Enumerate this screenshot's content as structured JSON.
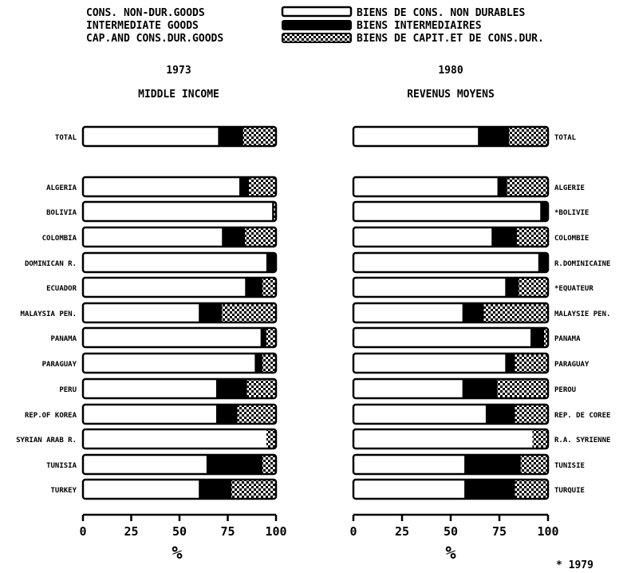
{
  "legend": [
    {
      "en": "CONS. NON-DUR.GOODS",
      "fr": "BIENS DE CONS. NON DURABLES",
      "pattern": "white"
    },
    {
      "en": "INTERMEDIATE GOODS",
      "fr": "BIENS INTERMEDIAIRES",
      "pattern": "black"
    },
    {
      "en": "CAP.AND CONS.DUR.GOODS",
      "fr": "BIENS DE CAPIT.ET DE CONS.DUR.",
      "pattern": "dots"
    }
  ],
  "footnote": "* 1979",
  "colors": {
    "ink": "#000000",
    "paper": "#ffffff",
    "dots": "#000000"
  },
  "chart_data": [
    {
      "type": "bar",
      "orientation": "horizontal",
      "stacked": true,
      "year": "1973",
      "title": "MIDDLE INCOME",
      "xlabel": "%",
      "xlim": [
        0,
        100
      ],
      "xticks": [
        0,
        25,
        50,
        75,
        100
      ],
      "categories": [
        "TOTAL",
        "ALGERIA",
        "BOLIVIA",
        "COLOMBIA",
        "DOMINICAN R.",
        "ECUADOR",
        "MALAYSIA PEN.",
        "PANAMA",
        "PARAGUAY",
        "PERU",
        "REP.OF KOREA",
        "SYRIAN ARAB R.",
        "TUNISIA",
        "TURKEY"
      ],
      "series": [
        {
          "name": "CONS. NON-DUR.GOODS",
          "values": [
            70,
            81,
            98,
            72,
            95,
            84,
            60,
            92,
            89,
            69,
            69,
            95,
            64,
            60
          ]
        },
        {
          "name": "INTERMEDIATE GOODS",
          "values": [
            13,
            5,
            1,
            12,
            5,
            9,
            12,
            3,
            4,
            16,
            11,
            0,
            29,
            17
          ]
        },
        {
          "name": "CAP.AND CONS.DUR.GOODS",
          "values": [
            17,
            14,
            1,
            16,
            0,
            7,
            28,
            5,
            7,
            15,
            20,
            5,
            7,
            23
          ]
        }
      ]
    },
    {
      "type": "bar",
      "orientation": "horizontal",
      "stacked": true,
      "year": "1980",
      "title": "REVENUS MOYENS",
      "xlabel": "%",
      "xlim": [
        0,
        100
      ],
      "xticks": [
        0,
        25,
        50,
        75,
        100
      ],
      "categories": [
        "TOTAL",
        "ALGERIE",
        "*BOLIVIE",
        "COLOMBIE",
        "R.DOMINICAINE",
        "*EQUATEUR",
        "MALAYSIE PEN.",
        "PANAMA",
        "PARAGUAY",
        "PEROU",
        "REP. DE COREE",
        "R.A. SYRIENNE",
        "TUNISIE",
        "TURQUIE"
      ],
      "series": [
        {
          "name": "BIENS DE CONS. NON DURABLES",
          "values": [
            64,
            74,
            96,
            71,
            95,
            78,
            56,
            91,
            78,
            56,
            68,
            92,
            57,
            57
          ]
        },
        {
          "name": "BIENS INTERMEDIAIRES",
          "values": [
            16,
            5,
            4,
            13,
            5,
            7,
            11,
            7,
            5,
            18,
            15,
            0,
            29,
            26
          ]
        },
        {
          "name": "BIENS DE CAPIT.ET DE CONS.DUR.",
          "values": [
            20,
            21,
            0,
            16,
            0,
            15,
            33,
            2,
            17,
            26,
            17,
            8,
            14,
            17
          ]
        }
      ]
    }
  ]
}
